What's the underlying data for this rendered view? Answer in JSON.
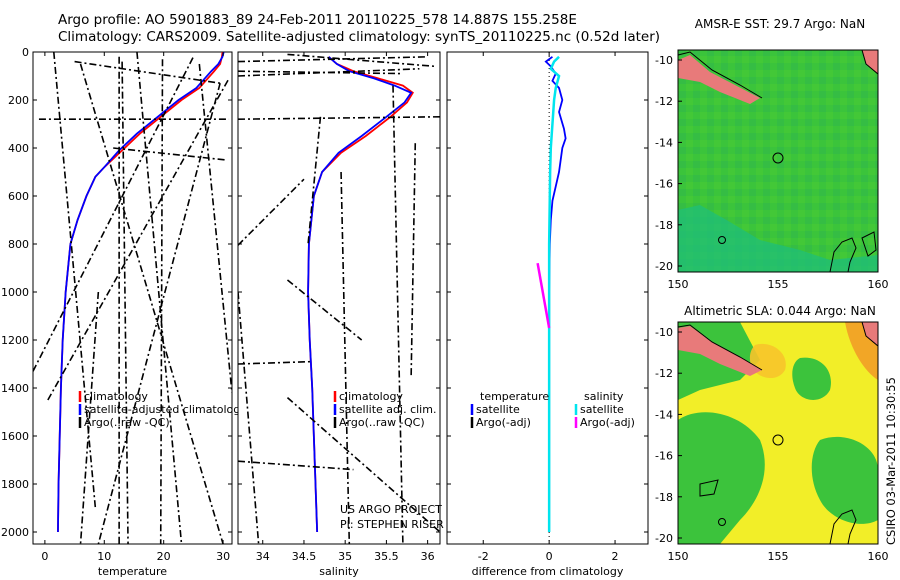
{
  "header": {
    "line1": "Argo profile: AO 5901883_89 24-Feb-2011 20110225_578 14.887S 155.258E",
    "line2": "Climatology: CARS2009. Satellite-adjusted climatology: synTS_20110225.nc (0.52d later)"
  },
  "credit": {
    "project": "US ARGO PROJECT",
    "pi": "PI: STEPHEN RISER",
    "stamp": "CSIRO 03-Mar-2011 10:30:55"
  },
  "colors": {
    "climatology": "#ff0000",
    "satellite": "#0000ff",
    "argo": "#000000",
    "sal_satellite": "#00e5ee",
    "sal_argo": "#ff00ff"
  },
  "chart_data": [
    {
      "id": "temperature",
      "type": "line",
      "xlabel": "temperature",
      "ylabel": "",
      "xlim": [
        -2,
        31.5
      ],
      "ylim": [
        2050,
        0
      ],
      "xticks": [
        0,
        10,
        20,
        30
      ],
      "yticks": [
        0,
        200,
        400,
        600,
        800,
        1000,
        1200,
        1400,
        1600,
        1800,
        2000
      ],
      "legend": [
        "climatology",
        "satellite-adjusted climatology",
        "Argo(..raw -QC)"
      ],
      "legend_position": "lower-center",
      "series": [
        {
          "name": "climatology",
          "x": [
            29.9,
            29.8,
            29.5,
            28.5,
            26.0,
            23.0,
            19.5,
            16.0,
            13.0,
            10.0,
            8.5,
            7.0,
            5.5,
            4.3,
            3.5,
            3.0,
            2.7,
            2.5,
            2.3,
            2.2
          ],
          "y": [
            0,
            20,
            50,
            80,
            150,
            200,
            270,
            340,
            410,
            480,
            520,
            600,
            700,
            800,
            1000,
            1200,
            1400,
            1600,
            1800,
            2000
          ]
        },
        {
          "name": "satellite-adjusted climatology",
          "x": [
            30.1,
            29.9,
            29.2,
            28.0,
            25.5,
            22.5,
            19.0,
            15.5,
            12.5,
            10.0,
            8.5,
            7.0,
            5.5,
            4.3,
            3.5,
            3.0,
            2.7,
            2.5,
            2.3,
            2.2
          ],
          "y": [
            0,
            20,
            50,
            80,
            150,
            200,
            270,
            340,
            410,
            480,
            520,
            600,
            700,
            800,
            1000,
            1200,
            1400,
            1600,
            1800,
            2000
          ]
        },
        {
          "name": "Argo(..raw -QC)",
          "segments": [
            [
              [
                5,
                40
              ],
              [
                29.5,
                130
              ]
            ],
            [
              [
                29.5,
                130
              ],
              [
                9,
                2050
              ]
            ],
            [
              [
                12.5,
                20
              ],
              [
                12.5,
                2050
              ]
            ],
            [
              [
                13,
                40
              ],
              [
                14,
                2050
              ]
            ],
            [
              [
                19.8,
                30
              ],
              [
                19.5,
                2050
              ]
            ],
            [
              [
                26,
                50
              ],
              [
                31.5,
                1420
              ]
            ],
            [
              [
                -1,
                280
              ],
              [
                31,
                280
              ]
            ],
            [
              [
                0.5,
                1450
              ],
              [
                31,
                110
              ]
            ],
            [
              [
                -2,
                1330
              ],
              [
                25,
                20
              ]
            ],
            [
              [
                6,
                50
              ],
              [
                30,
                2050
              ]
            ],
            [
              [
                11.5,
                400
              ],
              [
                30.5,
                450
              ]
            ],
            [
              [
                1.5,
                0
              ],
              [
                8.5,
                1900
              ]
            ],
            [
              [
                9,
                1000
              ],
              [
                6,
                2050
              ]
            ],
            [
              [
                15.5,
                0
              ],
              [
                23,
                2050
              ]
            ]
          ]
        }
      ]
    },
    {
      "id": "salinity",
      "type": "line",
      "xlabel": "salinity",
      "ylabel": "",
      "xlim": [
        33.7,
        36.15
      ],
      "ylim": [
        2050,
        0
      ],
      "xticks": [
        34,
        34.5,
        35,
        35.5,
        36
      ],
      "yticks": [
        0,
        200,
        400,
        600,
        800,
        1000,
        1200,
        1400,
        1600,
        1800,
        2000
      ],
      "legend": [
        "climatology",
        "satellite adj. clim.",
        "Argo(..raw -QC)"
      ],
      "legend_position": "lower-right",
      "series": [
        {
          "name": "climatology",
          "x": [
            34.8,
            34.9,
            35.1,
            35.4,
            35.7,
            35.82,
            35.75,
            35.55,
            35.25,
            34.95,
            34.72,
            34.62,
            34.56,
            34.55,
            34.57,
            34.6,
            34.62,
            34.64,
            34.66
          ],
          "y": [
            20,
            50,
            80,
            110,
            140,
            170,
            210,
            270,
            350,
            420,
            500,
            600,
            800,
            1000,
            1200,
            1400,
            1600,
            1800,
            2000
          ]
        },
        {
          "name": "satellite adj. clim.",
          "x": [
            34.8,
            34.9,
            35.05,
            35.35,
            35.6,
            35.8,
            35.72,
            35.5,
            35.2,
            34.92,
            34.72,
            34.62,
            34.56,
            34.55,
            34.57,
            34.6,
            34.62,
            34.64,
            34.66
          ],
          "y": [
            20,
            50,
            80,
            110,
            140,
            170,
            210,
            270,
            350,
            420,
            500,
            600,
            800,
            1000,
            1200,
            1400,
            1600,
            1800,
            2000
          ]
        },
        {
          "name": "Argo(..raw -QC)",
          "segments": [
            [
              [
                34.3,
                10
              ],
              [
                36.1,
                60
              ]
            ],
            [
              [
                33.7,
                80
              ],
              [
                35.7,
                90
              ]
            ],
            [
              [
                33.7,
                100
              ],
              [
                35.9,
                70
              ]
            ],
            [
              [
                33.7,
                280
              ],
              [
                36.15,
                270
              ]
            ],
            [
              [
                33.7,
                805
              ],
              [
                34.5,
                530
              ]
            ],
            [
              [
                33.7,
                1300
              ],
              [
                34.6,
                1290
              ]
            ],
            [
              [
                33.7,
                1705
              ],
              [
                35.1,
                1740
              ]
            ],
            [
              [
                35.85,
                380
              ],
              [
                35.8,
                1350
              ]
            ],
            [
              [
                35.58,
                140
              ],
              [
                35.7,
                2050
              ]
            ],
            [
              [
                34.95,
                500
              ],
              [
                35.05,
                2050
              ]
            ],
            [
              [
                33.7,
                1000
              ],
              [
                33.95,
                2050
              ]
            ],
            [
              [
                34.3,
                1440
              ],
              [
                36.15,
                2000
              ]
            ],
            [
              [
                33.7,
                40
              ],
              [
                36.0,
                20
              ]
            ],
            [
              [
                34.7,
                270
              ],
              [
                34.55,
                800
              ]
            ],
            [
              [
                34.3,
                950
              ],
              [
                35.2,
                1200
              ]
            ]
          ]
        }
      ]
    },
    {
      "id": "difference",
      "type": "line",
      "xlabel": "difference from climatology",
      "ylabel": "",
      "xlim": [
        -3.1,
        3.0
      ],
      "ylim": [
        2050,
        0
      ],
      "xticks": [
        -2,
        0,
        2
      ],
      "legend": [
        "temperature",
        "satellite",
        "Argo(-adj)",
        "salinity",
        "satellite",
        "Argo(-adj)"
      ],
      "legend_position": "lower-center",
      "series": [
        {
          "name": "temperature satellite",
          "x": [
            0.1,
            -0.1,
            0.05,
            0.2,
            0.1,
            0.3,
            0.4,
            0.3,
            0.45,
            0.5,
            0.4,
            0.35,
            0.3,
            0.2,
            0.1,
            0.05,
            0.02,
            0.0,
            0.0
          ],
          "y": [
            20,
            40,
            60,
            90,
            120,
            150,
            200,
            250,
            320,
            360,
            400,
            450,
            500,
            560,
            620,
            700,
            800,
            1000,
            2000
          ]
        },
        {
          "name": "salinity satellite",
          "x": [
            0.3,
            0.15,
            0.05,
            0.3,
            0.2,
            0.15,
            0.1,
            0.05,
            0.03,
            0.02,
            0.0,
            0.0,
            0.0
          ],
          "y": [
            20,
            40,
            70,
            100,
            150,
            200,
            300,
            400,
            500,
            600,
            800,
            1200,
            2000
          ]
        },
        {
          "name": "salinity Argo(-adj)",
          "x": [
            -0.35,
            0.0
          ],
          "y": [
            880,
            1150
          ]
        }
      ]
    }
  ],
  "maps": [
    {
      "id": "sst-map",
      "title": "AMSR-E SST: 29.7 Argo: NaN",
      "lon_ticks": [
        "150",
        "155",
        "160"
      ],
      "lat_ticks": [
        "-10",
        "-12",
        "-14",
        "-16",
        "-18",
        "-20"
      ],
      "argo_lon": 155.258,
      "argo_lat": -14.887
    },
    {
      "id": "sla-map",
      "title": "Altimetric SLA: 0.044 Argo: NaN",
      "lon_ticks": [
        "150",
        "155",
        "160"
      ],
      "lat_ticks": [
        "-10",
        "-12",
        "-14",
        "-16",
        "-18",
        "-20"
      ],
      "argo_lon": 155.258,
      "argo_lat": -14.887
    }
  ]
}
